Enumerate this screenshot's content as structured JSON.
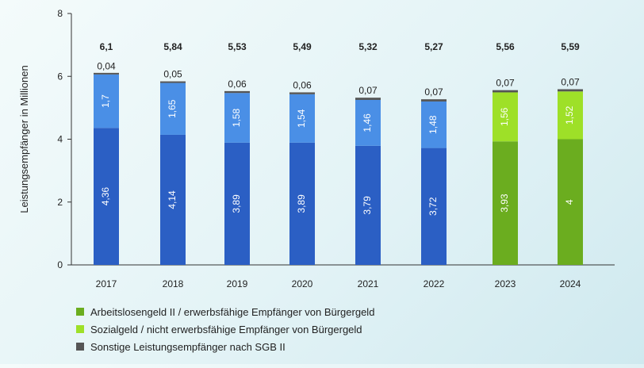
{
  "chart_data": {
    "type": "bar",
    "stacked": true,
    "categories": [
      "2017",
      "2018",
      "2019",
      "2020",
      "2021",
      "2022",
      "2023",
      "2024"
    ],
    "ylabel": "Leistungsempfänger in Millionen",
    "ylim": [
      0,
      8
    ],
    "yticks": [
      "0",
      "2",
      "4",
      "6",
      "8"
    ],
    "totals": [
      "6,1",
      "5,84",
      "5,53",
      "5,49",
      "5,32",
      "5,27",
      "5,56",
      "5,59"
    ],
    "series": [
      {
        "name": "Arbeitslosengeld II / erwerbsfähige Empfänger von Bürgergeld",
        "values": [
          4.36,
          4.14,
          3.89,
          3.89,
          3.79,
          3.72,
          3.93,
          4
        ],
        "labels": [
          "4,36",
          "4,14",
          "3,89",
          "3,89",
          "3,79",
          "3,72",
          "3,93",
          "4"
        ],
        "colors": [
          "#2b5fc4",
          "#2b5fc4",
          "#2b5fc4",
          "#2b5fc4",
          "#2b5fc4",
          "#2b5fc4",
          "#6bad1f",
          "#6bad1f"
        ]
      },
      {
        "name": "Sozialgeld / nicht erwerbsfähige Empfänger von Bürgergeld",
        "values": [
          1.7,
          1.65,
          1.58,
          1.54,
          1.46,
          1.48,
          1.56,
          1.52
        ],
        "labels": [
          "1,7",
          "1,65",
          "1,58",
          "1,54",
          "1,46",
          "1,48",
          "1,56",
          "1,52"
        ],
        "colors": [
          "#4a8fe6",
          "#4a8fe6",
          "#4a8fe6",
          "#4a8fe6",
          "#4a8fe6",
          "#4a8fe6",
          "#9ee028",
          "#9ee028"
        ]
      },
      {
        "name": "Sonstige Leistungsempfänger nach SGB II",
        "values": [
          0.04,
          0.05,
          0.06,
          0.06,
          0.07,
          0.07,
          0.07,
          0.07
        ],
        "labels": [
          "0,04",
          "0,05",
          "0,06",
          "0,06",
          "0,07",
          "0,07",
          "0,07",
          "0,07"
        ],
        "colors": [
          "#555555",
          "#555555",
          "#555555",
          "#555555",
          "#555555",
          "#555555",
          "#555555",
          "#555555"
        ]
      }
    ]
  },
  "legend": {
    "items": [
      {
        "label": "Arbeitslosengeld II / erwerbsfähige Empfänger von Bürgergeld",
        "color": "#6bad1f"
      },
      {
        "label": "Sozialgeld / nicht erwerbsfähige Empfänger von Bürgergeld",
        "color": "#9ee028"
      },
      {
        "label": "Sonstige Leistungsempfänger nach SGB II",
        "color": "#555555"
      }
    ]
  }
}
